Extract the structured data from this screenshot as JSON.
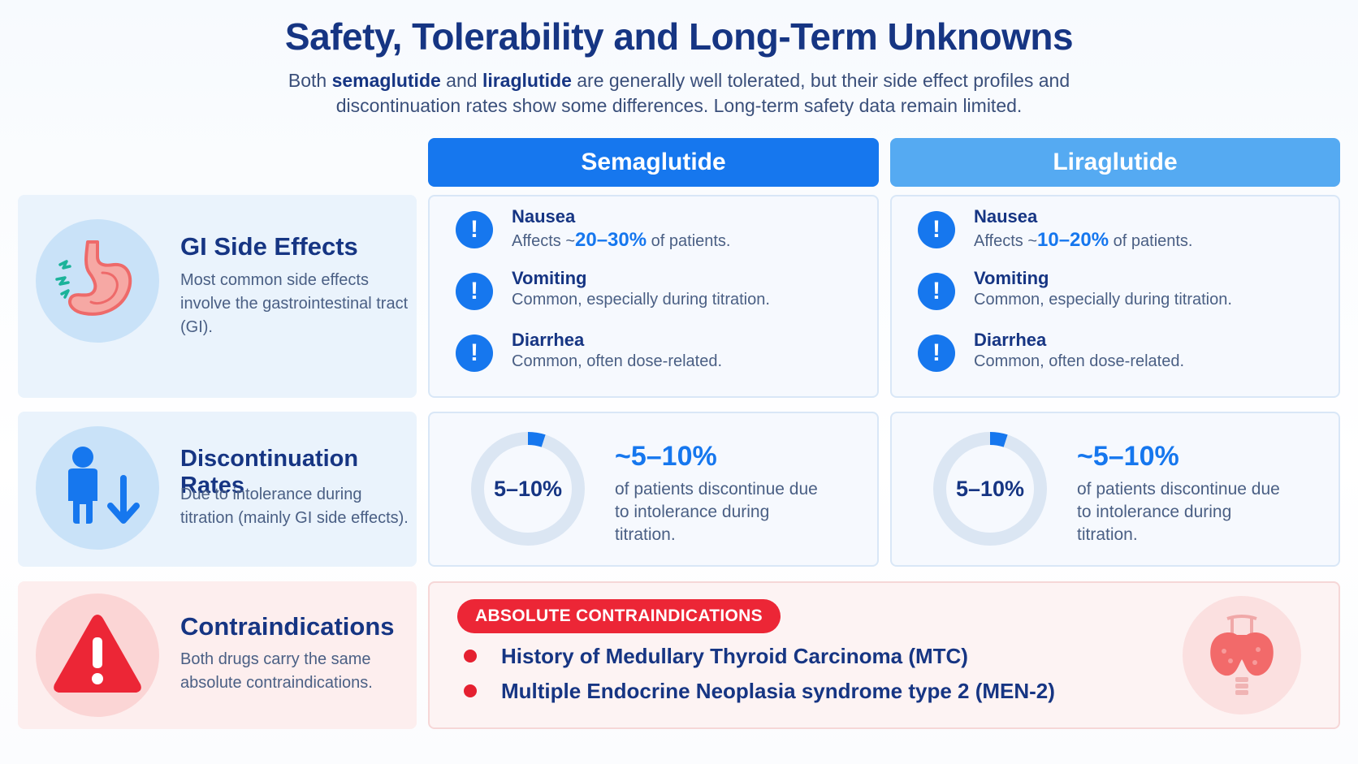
{
  "header": {
    "title": "Safety, Tolerability and Long-Term Unknowns",
    "subtitle_pre": "Both ",
    "drug1": "semaglutide",
    "subtitle_mid": " and ",
    "drug2": "liraglutide",
    "subtitle_post": " are generally well tolerated, but their side effect profiles and discontinuation rates show some differences. Long-term safety data remain limited."
  },
  "columns": {
    "semaglutide": "Semaglutide",
    "liraglutide": "Liraglutide"
  },
  "rows": {
    "gi": {
      "icon": "stomach-icon",
      "title": "GI Side Effects",
      "desc": "Most common side effects involve the gastrointestinal tract (GI).",
      "semaglutide": [
        {
          "name": "Nausea",
          "desc_pre": "Affects ~",
          "value": "20–30%",
          "desc_post": " of patients."
        },
        {
          "name": "Vomiting",
          "desc": "Common, especially during titration."
        },
        {
          "name": "Diarrhea",
          "desc": "Common, often dose-related."
        }
      ],
      "liraglutide": [
        {
          "name": "Nausea",
          "desc_pre": "Affects ~",
          "value": "10–20%",
          "desc_post": " of patients."
        },
        {
          "name": "Vomiting",
          "desc": "Common, especially during titration."
        },
        {
          "name": "Diarrhea",
          "desc": "Common, often dose-related."
        }
      ]
    },
    "discontinuation": {
      "icon": "person-down-arrow-icon",
      "title": "Discontinuation Rates",
      "desc": "Due to intolerance during titration (mainly GI side effects).",
      "semaglutide": {
        "donut_label": "5–10%",
        "big": "~5–10%",
        "desc": "of patients discontinue due to intolerance during titration.",
        "fill_fraction": 0.05
      },
      "liraglutide": {
        "donut_label": "5–10%",
        "big": "~5–10%",
        "desc": "of patients discontinue due to intolerance during titration.",
        "fill_fraction": 0.05
      }
    },
    "contraindications": {
      "icon": "warning-triangle-icon",
      "title": "Contraindications",
      "desc": "Both drugs carry the same absolute contraindications.",
      "pill": "ABSOLUTE CONTRAINDICATIONS",
      "items": [
        "History of Medullary Thyroid Carcinoma (MTC)",
        "Multiple Endocrine Neoplasia syndrome type 2 (MEN-2)"
      ],
      "side_icon": "thyroid-icon"
    }
  },
  "colors": {
    "primary": "#1677ee",
    "secondary": "#55aaf2",
    "navy": "#163583",
    "danger": "#e52030"
  }
}
